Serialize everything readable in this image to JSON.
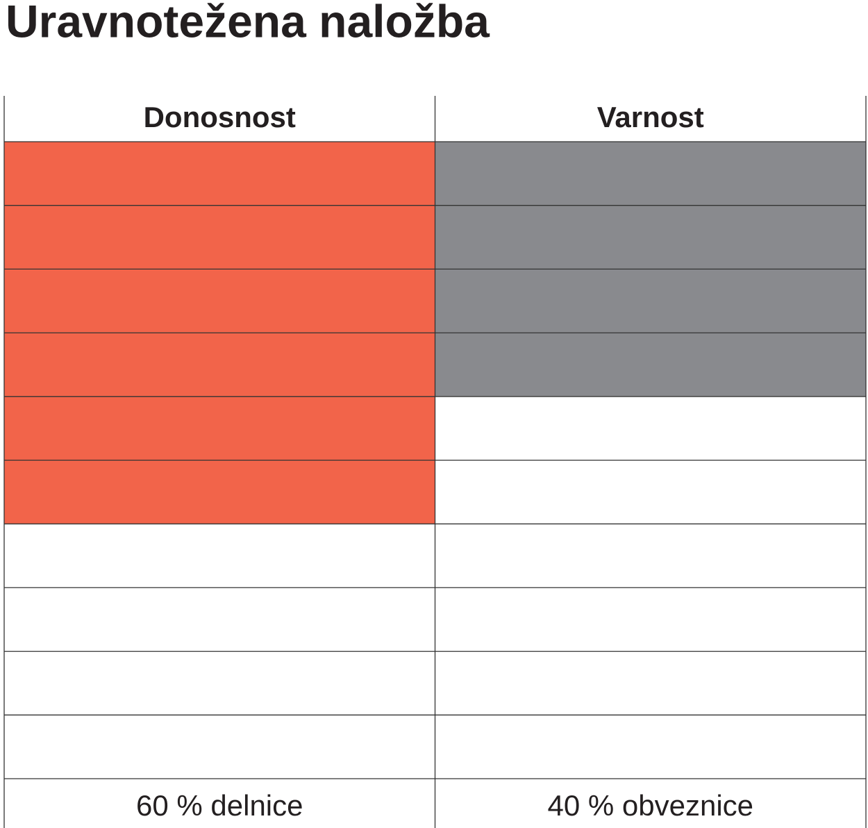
{
  "chart_data": {
    "type": "unit-columns",
    "title": "Uravnotežena naložba",
    "categories": [
      "Donosnost",
      "Varnost"
    ],
    "values": [
      60,
      40
    ],
    "value_labels": [
      "60 % delnice",
      "40 % obveznice"
    ],
    "colors": [
      "#f2644a",
      "#898a8e"
    ],
    "ylim": [
      0,
      100
    ],
    "yticks": [
      0,
      10,
      20,
      30,
      40,
      50,
      60,
      70,
      80,
      90,
      100
    ],
    "grid": true
  }
}
